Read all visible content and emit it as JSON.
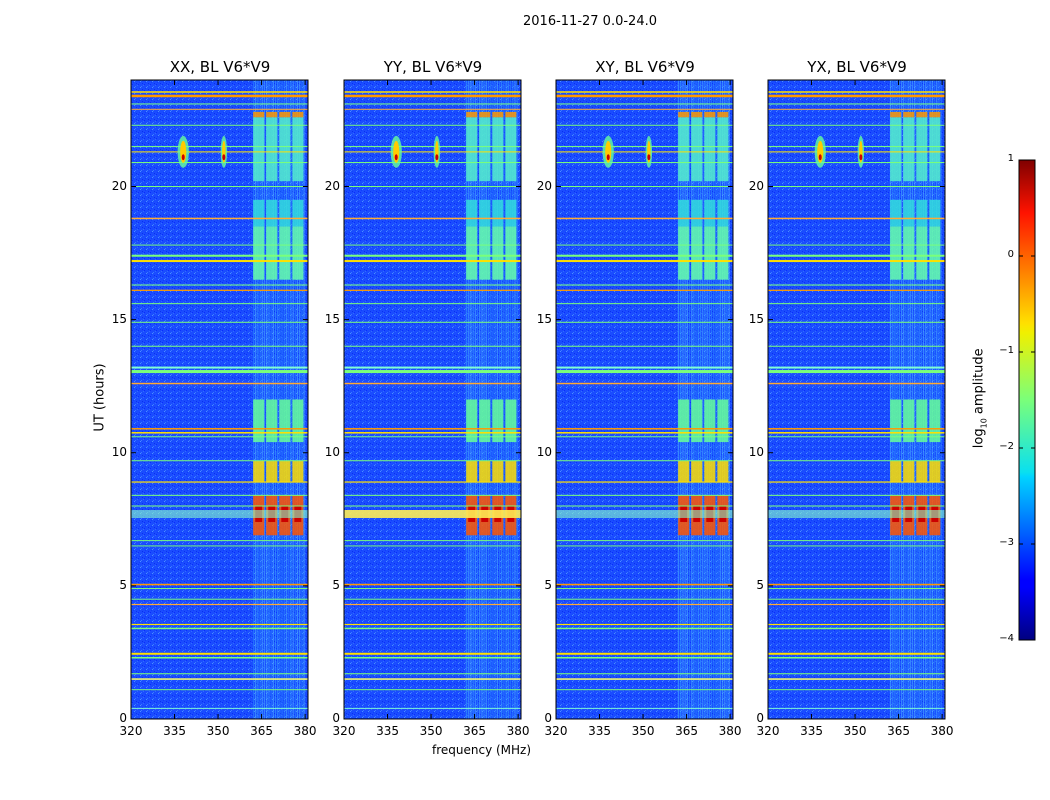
{
  "chart_data": {
    "type": "heatmap",
    "title": "2016-11-27 0.0-24.0",
    "xlabel": "frequency (MHz)",
    "ylabel": "UT (hours)",
    "xlim": [
      320,
      381
    ],
    "ylim": [
      0,
      24
    ],
    "xticks": [
      "320",
      "335",
      "350",
      "365",
      "380"
    ],
    "xtick_values": [
      320,
      335,
      350,
      365,
      380
    ],
    "yticks": [
      "0",
      "5",
      "10",
      "15",
      "20"
    ],
    "ytick_values": [
      0,
      5,
      10,
      15,
      20
    ],
    "panels": [
      {
        "title": "XX, BL V6*V9"
      },
      {
        "title": "YY, BL V6*V9"
      },
      {
        "title": "XY, BL V6*V9"
      },
      {
        "title": "YX, BL V6*V9"
      }
    ],
    "colorbar": {
      "label": "log",
      "label_sub": "10",
      "label_rest": " amplitude",
      "min": -4,
      "max": 1,
      "ticks": [
        "1",
        "0",
        "−1",
        "−2",
        "−3",
        "−4"
      ],
      "tick_values": [
        1,
        0,
        -1,
        -2,
        -3,
        -4
      ],
      "cmap": "jet"
    },
    "features": {
      "bright_hours": [
        7.7,
        9.3
      ],
      "rfi_band_mhz": [
        363,
        380
      ]
    }
  }
}
